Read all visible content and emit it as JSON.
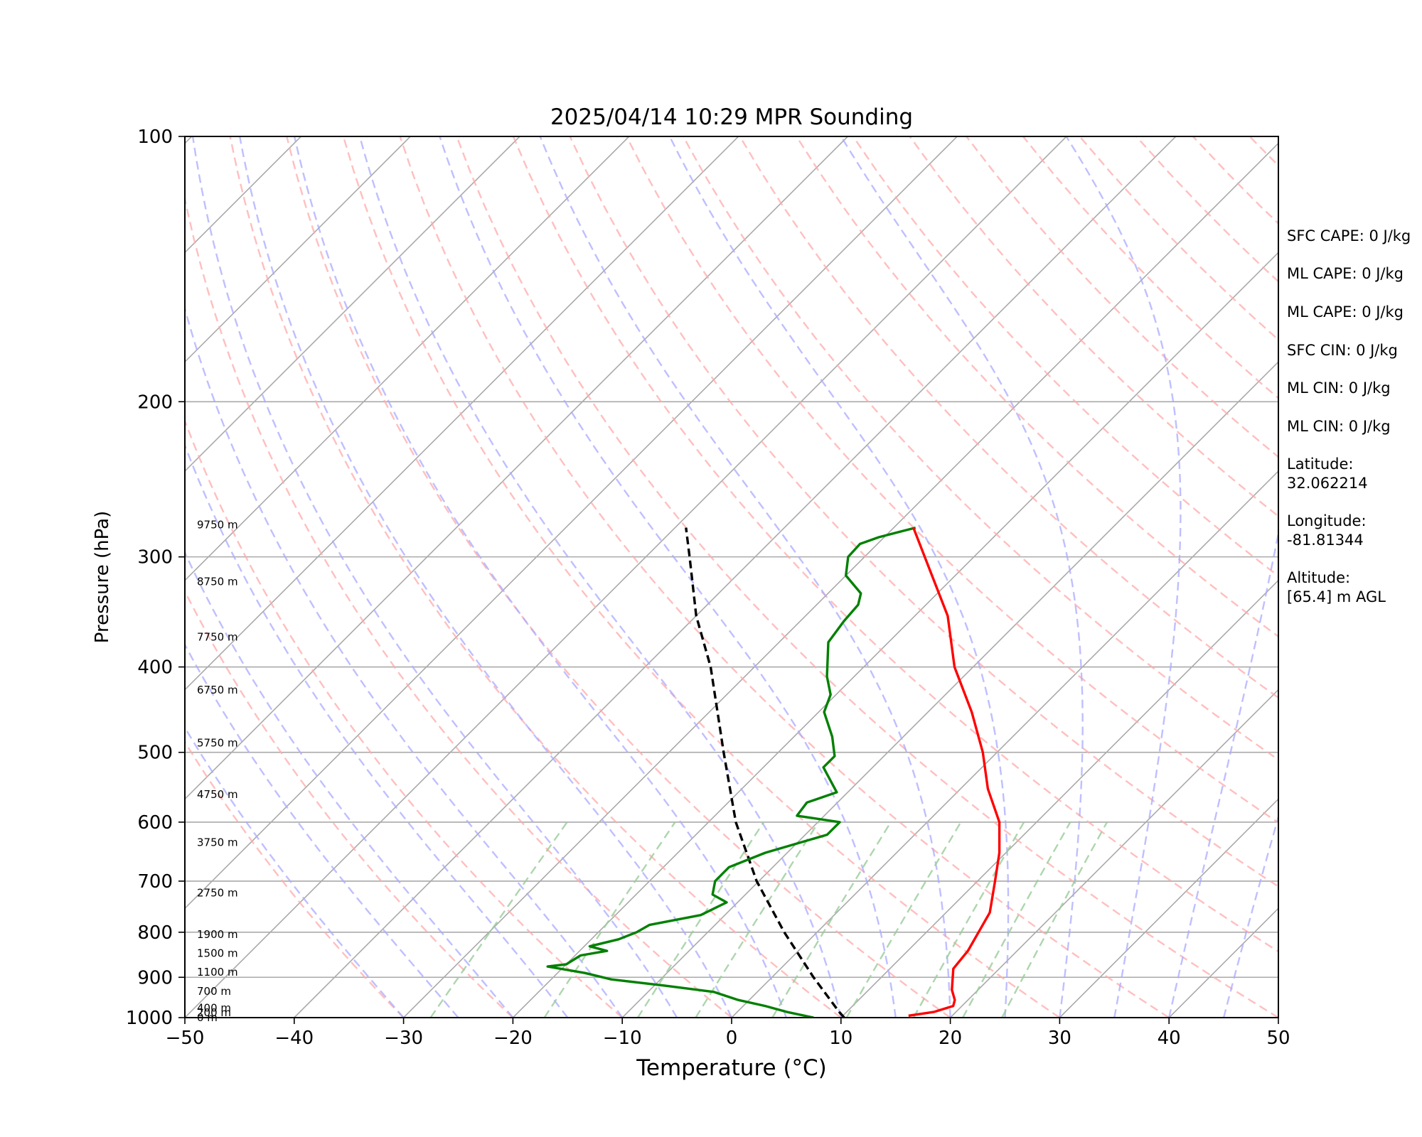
{
  "chart_data": {
    "type": "skew-t",
    "title": "2025/04/14 10:29 MPR Sounding",
    "xlabel": "Temperature (°C)",
    "ylabel": "Pressure (hPa)",
    "xlim": [
      -50,
      50
    ],
    "ylim": [
      1000,
      100
    ],
    "y_scale": "log",
    "x_ticks": [
      "−50",
      "−40",
      "−30",
      "−20",
      "−10",
      "0",
      "10",
      "20",
      "30",
      "40",
      "50"
    ],
    "y_ticks": [
      {
        "p": 100,
        "label": "100"
      },
      {
        "p": 200,
        "label": "200"
      },
      {
        "p": 300,
        "label": "300"
      },
      {
        "p": 400,
        "label": "400"
      },
      {
        "p": 500,
        "label": "500"
      },
      {
        "p": 600,
        "label": "600"
      },
      {
        "p": 700,
        "label": "700"
      },
      {
        "p": 800,
        "label": "800"
      },
      {
        "p": 900,
        "label": "900"
      },
      {
        "p": 1000,
        "label": "1000"
      }
    ],
    "grid": true,
    "colors": {
      "temperature": "#ff0000",
      "dewpoint": "#008000",
      "parcel": "#000000",
      "isotherm": "#aaaaaa",
      "dry_adiabat": "#ffaaaa",
      "moist_adiabat": "#aaaaff",
      "mixing_ratio": "#99cc99"
    },
    "temperature": [
      {
        "p": 995,
        "t": 16.0
      },
      {
        "p": 985,
        "t": 18.0
      },
      {
        "p": 970,
        "t": 19.2
      },
      {
        "p": 955,
        "t": 18.8
      },
      {
        "p": 930,
        "t": 17.6
      },
      {
        "p": 880,
        "t": 15.8
      },
      {
        "p": 840,
        "t": 15.5
      },
      {
        "p": 760,
        "t": 14.0
      },
      {
        "p": 700,
        "t": 11.6
      },
      {
        "p": 650,
        "t": 9.4
      },
      {
        "p": 600,
        "t": 6.6
      },
      {
        "p": 550,
        "t": 2.5
      },
      {
        "p": 500,
        "t": -1.3
      },
      {
        "p": 450,
        "t": -6.0
      },
      {
        "p": 400,
        "t": -11.7
      },
      {
        "p": 350,
        "t": -17.0
      },
      {
        "p": 300,
        "t": -24.5
      },
      {
        "p": 278,
        "t": -28.2
      }
    ],
    "dewpoint": [
      {
        "p": 1000,
        "t": 7.5
      },
      {
        "p": 985,
        "t": 4.5
      },
      {
        "p": 970,
        "t": 2.0
      },
      {
        "p": 955,
        "t": -1.0
      },
      {
        "p": 935,
        "t": -4.0
      },
      {
        "p": 920,
        "t": -9.0
      },
      {
        "p": 905,
        "t": -14.5
      },
      {
        "p": 890,
        "t": -17.5
      },
      {
        "p": 875,
        "t": -21.5
      },
      {
        "p": 870,
        "t": -20.0
      },
      {
        "p": 850,
        "t": -19.5
      },
      {
        "p": 840,
        "t": -17.5
      },
      {
        "p": 830,
        "t": -19.5
      },
      {
        "p": 815,
        "t": -17.5
      },
      {
        "p": 800,
        "t": -16.5
      },
      {
        "p": 785,
        "t": -16.0
      },
      {
        "p": 765,
        "t": -12.2
      },
      {
        "p": 740,
        "t": -11.0
      },
      {
        "p": 725,
        "t": -13.0
      },
      {
        "p": 700,
        "t": -14.0
      },
      {
        "p": 675,
        "t": -14.0
      },
      {
        "p": 650,
        "t": -12.0
      },
      {
        "p": 620,
        "t": -8.0
      },
      {
        "p": 600,
        "t": -8.0
      },
      {
        "p": 590,
        "t": -12.5
      },
      {
        "p": 570,
        "t": -12.8
      },
      {
        "p": 555,
        "t": -11.0
      },
      {
        "p": 520,
        "t": -14.5
      },
      {
        "p": 505,
        "t": -14.5
      },
      {
        "p": 480,
        "t": -16.5
      },
      {
        "p": 450,
        "t": -19.5
      },
      {
        "p": 430,
        "t": -20.5
      },
      {
        "p": 410,
        "t": -22.5
      },
      {
        "p": 375,
        "t": -25.5
      },
      {
        "p": 355,
        "t": -26.0
      },
      {
        "p": 340,
        "t": -26.2
      },
      {
        "p": 330,
        "t": -27.0
      },
      {
        "p": 315,
        "t": -30.0
      },
      {
        "p": 300,
        "t": -31.5
      },
      {
        "p": 290,
        "t": -31.6
      },
      {
        "p": 285,
        "t": -30.5
      },
      {
        "p": 278,
        "t": -28.0
      }
    ],
    "parcel": [
      {
        "p": 1000,
        "t": 10.3
      },
      {
        "p": 985,
        "t": 9.3
      },
      {
        "p": 900,
        "t": 3.8
      },
      {
        "p": 800,
        "t": -3.0
      },
      {
        "p": 700,
        "t": -10.2
      },
      {
        "p": 600,
        "t": -17.5
      },
      {
        "p": 500,
        "t": -25.0
      },
      {
        "p": 400,
        "t": -34.0
      },
      {
        "p": 350,
        "t": -40.0
      },
      {
        "p": 300,
        "t": -46.0
      },
      {
        "p": 278,
        "t": -49.0
      }
    ],
    "height_labels": [
      {
        "p": 1000,
        "label": "0 m"
      },
      {
        "p": 987,
        "label": "200 m"
      },
      {
        "p": 975,
        "label": "400 m"
      },
      {
        "p": 934,
        "label": "700 m"
      },
      {
        "p": 888,
        "label": "1100 m"
      },
      {
        "p": 845,
        "label": "1500 m"
      },
      {
        "p": 805,
        "label": "1900 m"
      },
      {
        "p": 722,
        "label": "2750 m"
      },
      {
        "p": 633,
        "label": "3750 m"
      },
      {
        "p": 558,
        "label": "4750 m"
      },
      {
        "p": 488,
        "label": "5750 m"
      },
      {
        "p": 425,
        "label": "6750 m"
      },
      {
        "p": 370,
        "label": "7750 m"
      },
      {
        "p": 320,
        "label": "8750 m"
      },
      {
        "p": 276,
        "label": "9750 m"
      }
    ]
  },
  "info_panel": [
    {
      "line1": "SFC CAPE: 0 J/kg",
      "line2": ""
    },
    {
      "line1": "ML CAPE: 0 J/kg",
      "line2": ""
    },
    {
      "line1": "ML CAPE: 0 J/kg",
      "line2": ""
    },
    {
      "line1": "SFC CIN: 0 J/kg",
      "line2": ""
    },
    {
      "line1": "ML CIN: 0 J/kg",
      "line2": ""
    },
    {
      "line1": "ML CIN: 0 J/kg",
      "line2": ""
    },
    {
      "line1": "Latitude:",
      "line2": "32.062214"
    },
    {
      "line1": "Longitude:",
      "line2": "-81.81344"
    },
    {
      "line1": "Altitude:",
      "line2": "[65.4] m AGL"
    }
  ]
}
